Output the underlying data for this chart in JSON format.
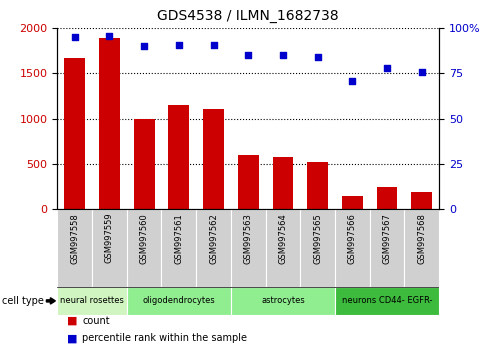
{
  "title": "GDS4538 / ILMN_1682738",
  "samples": [
    "GSM997558",
    "GSM997559",
    "GSM997560",
    "GSM997561",
    "GSM997562",
    "GSM997563",
    "GSM997564",
    "GSM997565",
    "GSM997566",
    "GSM997567",
    "GSM997568"
  ],
  "counts": [
    1670,
    1890,
    1000,
    1150,
    1110,
    600,
    575,
    515,
    140,
    245,
    185
  ],
  "percentiles": [
    95,
    96,
    90,
    91,
    91,
    85,
    85,
    84,
    71,
    78,
    76
  ],
  "bar_color": "#cc0000",
  "dot_color": "#0000cc",
  "left_ylim": [
    0,
    2000
  ],
  "right_ylim": [
    0,
    100
  ],
  "left_yticks": [
    0,
    500,
    1000,
    1500,
    2000
  ],
  "right_yticks": [
    0,
    25,
    50,
    75,
    100
  ],
  "right_yticklabels": [
    "0",
    "25",
    "50",
    "75",
    "100%"
  ],
  "left_color": "#cc0000",
  "right_color": "#0000cc",
  "bg_color": "#ffffff",
  "groups": [
    {
      "label": "neural rosettes",
      "cols": 2,
      "color": "#d0f5c0"
    },
    {
      "label": "oligodendrocytes",
      "cols": 3,
      "color": "#90ee90"
    },
    {
      "label": "astrocytes",
      "cols": 3,
      "color": "#90ee90"
    },
    {
      "label": "neurons CD44- EGFR-",
      "cols": 3,
      "color": "#3dbb3d"
    }
  ],
  "sample_box_color": "#d0d0d0",
  "legend_count_color": "#cc0000",
  "legend_pct_color": "#0000cc"
}
